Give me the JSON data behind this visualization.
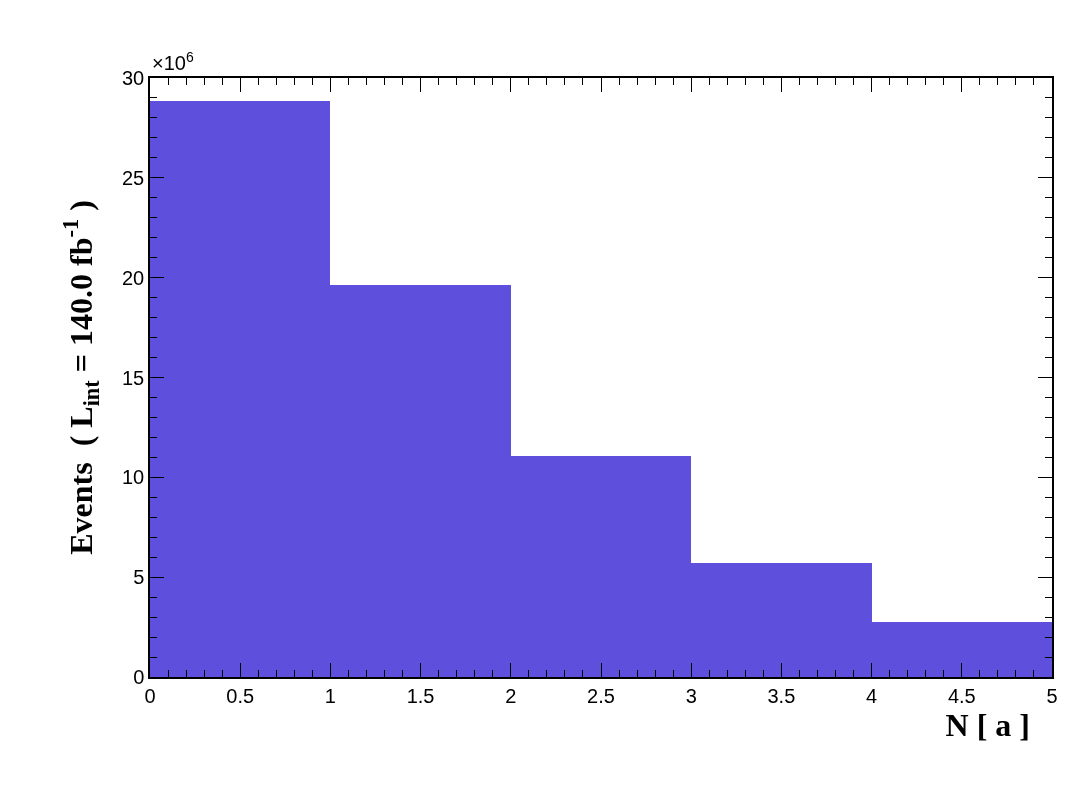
{
  "chart_data": {
    "type": "histogram",
    "bins": [
      0,
      1,
      2,
      3,
      4,
      5
    ],
    "values": [
      28.85,
      19.65,
      11.08,
      5.69,
      2.75
    ],
    "color": "#5e50dc",
    "xlabel": "N [ a ]",
    "ylabel": "Events  ( L$_{int}$ = 140.0 fb$^{-1}$ )",
    "annotations": [
      "×10$^{6}$"
    ],
    "xlim": [
      0,
      5
    ],
    "xticks": [
      0,
      0.5,
      1,
      1.5,
      2,
      2.5,
      3,
      3.5,
      4,
      4.5,
      5
    ],
    "ylim": [
      0,
      30
    ],
    "yticks": [
      0,
      5,
      10,
      15,
      20,
      25,
      30
    ],
    "grid": false
  }
}
